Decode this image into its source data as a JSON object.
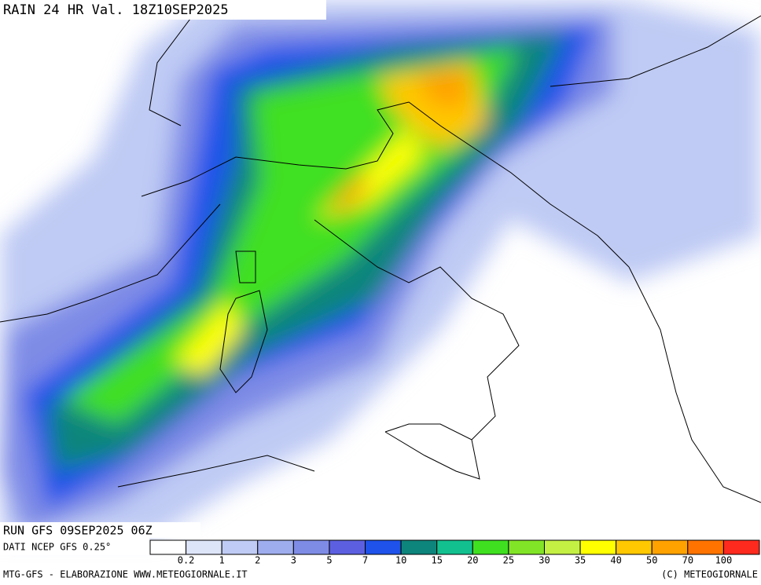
{
  "header": {
    "title": "RAIN 24 HR Val. 18Z10SEP2025"
  },
  "run_info": {
    "run": "RUN GFS 09SEP2025 06Z",
    "source": "DATI NCEP GFS 0.25°"
  },
  "legend": {
    "labels": [
      0.2,
      1,
      2,
      3,
      5,
      7,
      10,
      15,
      20,
      25,
      30,
      35,
      40,
      50,
      70,
      100
    ],
    "colors": [
      "#ffffff",
      "#dde5f9",
      "#bfcbf4",
      "#9eadee",
      "#7f8ce6",
      "#5c60e0",
      "#1e52ea",
      "#0e857c",
      "#12c08f",
      "#3fe020",
      "#82e426",
      "#c4f044",
      "#ffff00",
      "#ffc800",
      "#ffa200",
      "#ff7400",
      "#ff2a1e"
    ]
  },
  "footer": {
    "left": "MTG-GFS - ELABORAZIONE WWW.METEOGIORNALE.IT",
    "right": "(C) METEOGIORNALE"
  }
}
